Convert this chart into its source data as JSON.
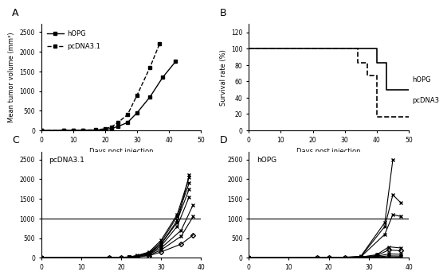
{
  "panel_A": {
    "title": "A",
    "xlabel": "Days post injection",
    "ylabel": "Mean tumor volume (mm³)",
    "xlim": [
      0,
      50
    ],
    "ylim": [
      0,
      2700
    ],
    "yticks": [
      0,
      500,
      1000,
      1500,
      2000,
      2500
    ],
    "xticks": [
      0,
      10,
      20,
      30,
      40,
      50
    ],
    "hopg_x": [
      0,
      7,
      10,
      13,
      17,
      20,
      22,
      24,
      27,
      30,
      34,
      38,
      42
    ],
    "hopg_y": [
      0,
      2,
      3,
      5,
      8,
      20,
      50,
      100,
      200,
      450,
      850,
      1350,
      1750
    ],
    "pcdna_x": [
      0,
      7,
      10,
      13,
      17,
      20,
      22,
      24,
      27,
      30,
      34,
      37
    ],
    "pcdna_y": [
      0,
      2,
      4,
      8,
      15,
      40,
      90,
      200,
      400,
      900,
      1600,
      2200
    ],
    "legend_hopg": "hOPG",
    "legend_pcdna": "pcDNA3.1"
  },
  "panel_B": {
    "title": "B",
    "xlabel": "Days post injection",
    "ylabel": "Survival rate (%)",
    "xlim": [
      0,
      50
    ],
    "ylim": [
      0,
      130
    ],
    "yticks": [
      0,
      20,
      40,
      60,
      80,
      100,
      120
    ],
    "xticks": [
      0,
      10,
      20,
      30,
      40,
      50
    ],
    "hopg_x": [
      0,
      40,
      40,
      43,
      43,
      50
    ],
    "hopg_y": [
      100,
      100,
      83,
      83,
      50,
      50
    ],
    "pcdna_x": [
      0,
      34,
      34,
      37,
      37,
      40,
      40,
      43,
      43,
      50
    ],
    "pcdna_y": [
      100,
      100,
      83,
      83,
      67,
      67,
      17,
      17,
      17,
      17
    ],
    "legend_hopg": "hOPG",
    "legend_pcdna": "pcDNA3"
  },
  "panel_C": {
    "title": "C",
    "label": "pcDNA3.1",
    "xlim": [
      0,
      40
    ],
    "ylim": [
      0,
      2700
    ],
    "yticks": [
      0,
      500,
      1000,
      1500,
      2000,
      2500
    ],
    "xticks": [
      0,
      10,
      20,
      30,
      40
    ],
    "hline_y": 1000,
    "animals": [
      {
        "x": [
          0,
          17,
          20,
          22,
          24,
          27,
          30,
          34,
          37
        ],
        "y": [
          0,
          5,
          10,
          20,
          50,
          120,
          350,
          900,
          2100
        ],
        "marker": "x"
      },
      {
        "x": [
          0,
          17,
          20,
          22,
          24,
          27,
          30,
          34,
          37
        ],
        "y": [
          0,
          5,
          12,
          25,
          60,
          150,
          450,
          1100,
          2050
        ],
        "marker": "x"
      },
      {
        "x": [
          0,
          17,
          20,
          22,
          24,
          27,
          30,
          34,
          37
        ],
        "y": [
          0,
          4,
          10,
          20,
          50,
          130,
          400,
          1050,
          1900
        ],
        "marker": "x"
      },
      {
        "x": [
          0,
          17,
          20,
          22,
          24,
          27,
          30,
          34,
          37
        ],
        "y": [
          0,
          3,
          8,
          18,
          45,
          110,
          350,
          950,
          1750
        ],
        "marker": "x"
      },
      {
        "x": [
          0,
          17,
          20,
          22,
          24,
          27,
          30,
          34,
          37
        ],
        "y": [
          0,
          3,
          7,
          15,
          40,
          100,
          300,
          800,
          1550
        ],
        "marker": "x"
      },
      {
        "x": [
          0,
          17,
          20,
          22,
          24,
          27,
          30,
          35,
          38
        ],
        "y": [
          0,
          3,
          7,
          14,
          35,
          90,
          250,
          700,
          1350
        ],
        "marker": "x"
      },
      {
        "x": [
          0,
          17,
          20,
          22,
          24,
          27,
          30,
          35,
          38
        ],
        "y": [
          0,
          2,
          5,
          12,
          28,
          70,
          200,
          550,
          1050
        ],
        "marker": "x"
      },
      {
        "x": [
          0,
          17,
          20,
          22,
          24,
          27,
          30,
          35,
          38
        ],
        "y": [
          0,
          2,
          5,
          10,
          22,
          55,
          150,
          350,
          580
        ],
        "marker": "D"
      }
    ]
  },
  "panel_D": {
    "title": "D",
    "label": "hOPG",
    "xlim": [
      0,
      40
    ],
    "ylim": [
      0,
      2700
    ],
    "yticks": [
      0,
      500,
      1000,
      1500,
      2000,
      2500
    ],
    "xticks": [
      0,
      10,
      20,
      30,
      40
    ],
    "hline_y": 1000,
    "animals": [
      {
        "x": [
          0,
          17,
          20,
          24,
          28,
          34,
          36
        ],
        "y": [
          0,
          2,
          5,
          15,
          40,
          900,
          2500
        ],
        "marker": "x"
      },
      {
        "x": [
          0,
          17,
          20,
          24,
          28,
          34,
          36,
          38
        ],
        "y": [
          0,
          2,
          4,
          12,
          30,
          800,
          1600,
          1400
        ],
        "marker": "x"
      },
      {
        "x": [
          0,
          17,
          20,
          24,
          28,
          34,
          36,
          38
        ],
        "y": [
          0,
          2,
          4,
          10,
          25,
          600,
          1100,
          1050
        ],
        "marker": "x"
      },
      {
        "x": [
          0,
          17,
          20,
          24,
          28,
          32,
          35,
          38
        ],
        "y": [
          0,
          2,
          3,
          8,
          20,
          80,
          280,
          250
        ],
        "marker": "x"
      },
      {
        "x": [
          0,
          17,
          20,
          24,
          28,
          32,
          35,
          38
        ],
        "y": [
          0,
          2,
          3,
          7,
          15,
          60,
          200,
          180
        ],
        "marker": "D"
      },
      {
        "x": [
          0,
          17,
          20,
          24,
          28,
          32,
          35,
          38
        ],
        "y": [
          0,
          1,
          2,
          5,
          10,
          40,
          100,
          90
        ],
        "marker": "x"
      },
      {
        "x": [
          0,
          17,
          20,
          24,
          28,
          32,
          35,
          38
        ],
        "y": [
          0,
          1,
          2,
          4,
          8,
          25,
          50,
          45
        ],
        "marker": "x"
      },
      {
        "x": [
          0,
          17,
          20,
          24,
          28,
          32,
          35,
          38
        ],
        "y": [
          0,
          1,
          2,
          3,
          6,
          15,
          25,
          20
        ],
        "marker": "x"
      }
    ]
  }
}
